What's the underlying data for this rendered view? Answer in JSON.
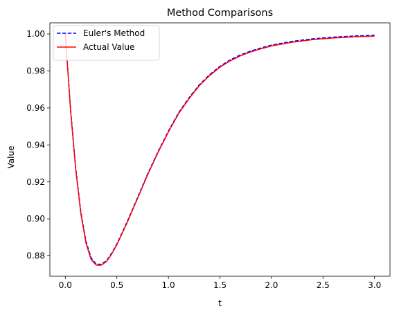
{
  "chart_data": {
    "type": "line",
    "title": "Method Comparisons",
    "xlabel": "t",
    "ylabel": "Value",
    "xlim": [
      -0.15,
      3.15
    ],
    "ylim": [
      0.869,
      1.006
    ],
    "xticks": [
      0.0,
      0.5,
      1.0,
      1.5,
      2.0,
      2.5,
      3.0
    ],
    "xtick_labels": [
      "0.0",
      "0.5",
      "1.0",
      "1.5",
      "2.0",
      "2.5",
      "3.0"
    ],
    "yticks": [
      0.88,
      0.9,
      0.92,
      0.94,
      0.96,
      0.98,
      1.0
    ],
    "ytick_labels": [
      "0.88",
      "0.90",
      "0.92",
      "0.94",
      "0.96",
      "0.98",
      "1.00"
    ],
    "legend_position": "top-left",
    "grid": false,
    "series": [
      {
        "name": "Euler's Method",
        "color": "#0000ff",
        "style": "dashed",
        "x": [
          0.0,
          0.05,
          0.1,
          0.15,
          0.2,
          0.25,
          0.3,
          0.35,
          0.4,
          0.45,
          0.5,
          0.6,
          0.7,
          0.8,
          0.9,
          1.0,
          1.1,
          1.2,
          1.3,
          1.4,
          1.5,
          1.6,
          1.7,
          1.8,
          1.9,
          2.0,
          2.2,
          2.4,
          2.6,
          2.8,
          3.0
        ],
        "values": [
          1.0,
          0.96,
          0.928,
          0.904,
          0.888,
          0.879,
          0.8755,
          0.8755,
          0.8775,
          0.8815,
          0.8865,
          0.8985,
          0.9115,
          0.9245,
          0.9365,
          0.9475,
          0.9575,
          0.9655,
          0.9725,
          0.978,
          0.9825,
          0.986,
          0.9887,
          0.9908,
          0.9925,
          0.994,
          0.996,
          0.9974,
          0.9983,
          0.9989,
          0.9993
        ]
      },
      {
        "name": "Actual Value",
        "color": "#ff0000",
        "style": "solid",
        "x": [
          0.0,
          0.05,
          0.1,
          0.15,
          0.2,
          0.25,
          0.3,
          0.35,
          0.4,
          0.45,
          0.5,
          0.6,
          0.7,
          0.8,
          0.9,
          1.0,
          1.1,
          1.2,
          1.3,
          1.4,
          1.5,
          1.6,
          1.7,
          1.8,
          1.9,
          2.0,
          2.2,
          2.4,
          2.6,
          2.8,
          3.0
        ],
        "values": [
          1.0,
          0.959,
          0.927,
          0.903,
          0.887,
          0.878,
          0.875,
          0.875,
          0.877,
          0.881,
          0.886,
          0.898,
          0.911,
          0.924,
          0.936,
          0.947,
          0.957,
          0.965,
          0.972,
          0.9775,
          0.982,
          0.9855,
          0.9882,
          0.9903,
          0.992,
          0.9935,
          0.9955,
          0.9969,
          0.9978,
          0.9984,
          0.9988
        ]
      }
    ]
  }
}
